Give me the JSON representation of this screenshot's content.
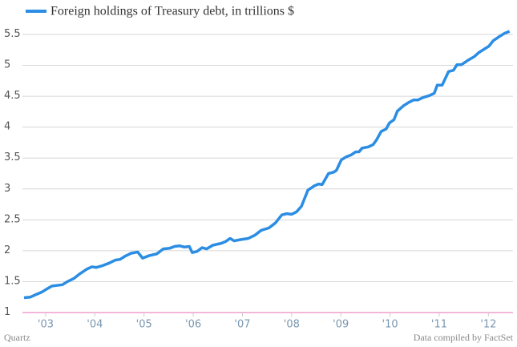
{
  "chart_data": {
    "type": "line",
    "x": [
      2002.56,
      2002.69,
      2002.8,
      2002.92,
      2003.02,
      2003.13,
      2003.24,
      2003.34,
      2003.44,
      2003.57,
      2003.7,
      2003.83,
      2003.94,
      2004.03,
      2004.16,
      2004.29,
      2004.42,
      2004.51,
      2004.61,
      2004.74,
      2004.87,
      2004.97,
      2005.1,
      2005.26,
      2005.39,
      2005.52,
      2005.62,
      2005.72,
      2005.82,
      2005.92,
      2005.98,
      2006.08,
      2006.18,
      2006.27,
      2006.4,
      2006.57,
      2006.66,
      2006.75,
      2006.83,
      2006.96,
      2007.12,
      2007.25,
      2007.38,
      2007.54,
      2007.67,
      2007.8,
      2007.9,
      2008.0,
      2008.1,
      2008.2,
      2008.33,
      2008.46,
      2008.55,
      2008.62,
      2008.75,
      2008.85,
      2008.91,
      2009.01,
      2009.11,
      2009.21,
      2009.3,
      2009.37,
      2009.43,
      2009.56,
      2009.66,
      2009.73,
      2009.82,
      2009.92,
      2009.99,
      2010.08,
      2010.15,
      2010.28,
      2010.38,
      2010.48,
      2010.57,
      2010.67,
      2010.8,
      2010.9,
      2010.96,
      2011.06,
      2011.19,
      2011.29,
      2011.36,
      2011.45,
      2011.58,
      2011.71,
      2011.81,
      2011.91,
      2012.01,
      2012.1,
      2012.23,
      2012.33,
      2012.43
    ],
    "series": [
      {
        "name": "Foreign holdings of Treasury debt, in trillions $",
        "color": "#2b8de3",
        "values": [
          1.24,
          1.25,
          1.29,
          1.33,
          1.38,
          1.43,
          1.44,
          1.45,
          1.5,
          1.55,
          1.63,
          1.7,
          1.74,
          1.73,
          1.76,
          1.8,
          1.85,
          1.86,
          1.91,
          1.96,
          1.98,
          1.88,
          1.92,
          1.95,
          2.03,
          2.04,
          2.07,
          2.08,
          2.06,
          2.07,
          1.97,
          1.99,
          2.05,
          2.03,
          2.09,
          2.12,
          2.15,
          2.2,
          2.16,
          2.18,
          2.2,
          2.25,
          2.33,
          2.37,
          2.45,
          2.58,
          2.6,
          2.59,
          2.63,
          2.72,
          2.98,
          3.05,
          3.08,
          3.07,
          3.25,
          3.27,
          3.3,
          3.47,
          3.52,
          3.55,
          3.6,
          3.6,
          3.66,
          3.68,
          3.72,
          3.8,
          3.93,
          3.97,
          4.07,
          4.12,
          4.26,
          4.35,
          4.4,
          4.44,
          4.44,
          4.48,
          4.51,
          4.55,
          4.68,
          4.68,
          4.9,
          4.92,
          5.01,
          5.01,
          5.08,
          5.14,
          5.21,
          5.26,
          5.31,
          5.4,
          5.47,
          5.52,
          5.55
        ]
      }
    ],
    "xlim": [
      2002.5,
      2012.5
    ],
    "xticks": [
      {
        "value": 2003,
        "label": "'03"
      },
      {
        "value": 2004,
        "label": "'04"
      },
      {
        "value": 2005,
        "label": "'05"
      },
      {
        "value": 2006,
        "label": "'06"
      },
      {
        "value": 2007,
        "label": "'07"
      },
      {
        "value": 2008,
        "label": "'08"
      },
      {
        "value": 2009,
        "label": "'09"
      },
      {
        "value": 2010,
        "label": "'10"
      },
      {
        "value": 2011,
        "label": "'11"
      },
      {
        "value": 2012,
        "label": "'12"
      }
    ],
    "ylim": [
      1,
      5.5
    ],
    "yticks": [
      1,
      1.5,
      2,
      2.5,
      3,
      3.5,
      4,
      4.5,
      5,
      5.5
    ],
    "grid": true,
    "source_left": "Quartz",
    "source_right": "Data compiled by FactSet"
  }
}
